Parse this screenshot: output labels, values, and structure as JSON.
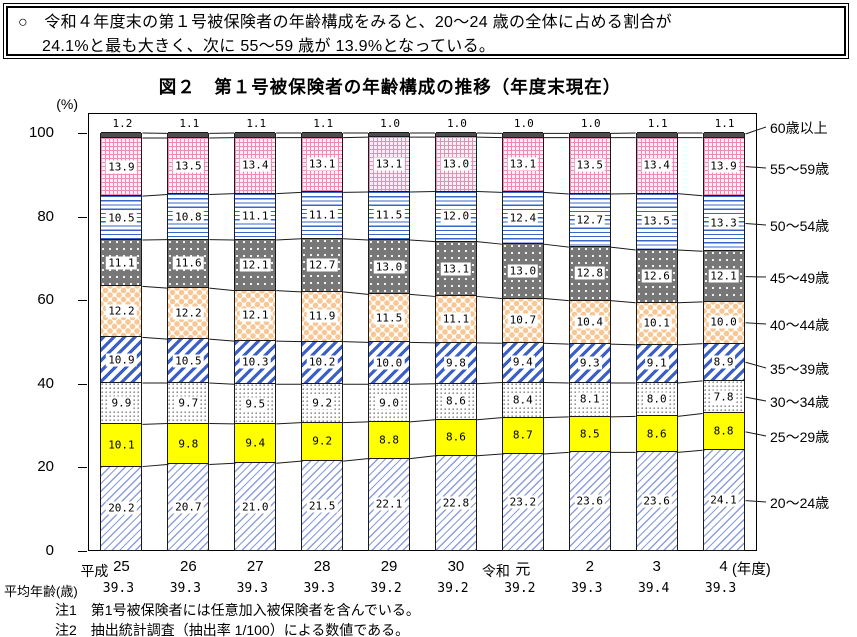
{
  "summary": {
    "bullet": "○",
    "line1": "令和４年度末の第１号被保険者の年齢構成をみると、20～24 歳の全体に占める割合が",
    "line2": "24.1%と最も大きく、次に 55～59 歳が 13.9%となっている。"
  },
  "chart_data": {
    "type": "bar",
    "stacked": true,
    "title": "図２　第１号被保険者の年齢構成の推移（年度末現在）",
    "y_unit": "(%)",
    "x_unit": "(年度)",
    "ylim": [
      0,
      100
    ],
    "yticks": [
      0,
      20,
      40,
      60,
      80,
      100
    ],
    "grid": false,
    "legend_position": "right",
    "categories": [
      "25",
      "26",
      "27",
      "28",
      "29",
      "30",
      "元",
      "2",
      "3",
      "4"
    ],
    "era_prefixes": [
      {
        "index": 0,
        "label": "平成"
      },
      {
        "index": 6,
        "label": "令和"
      }
    ],
    "series": [
      {
        "key": "20-24",
        "name": "20～24歳",
        "pattern": "diagonal-hatch-light-blue",
        "label_box": true,
        "values": [
          20.2,
          20.7,
          21.0,
          21.5,
          22.1,
          22.8,
          23.2,
          23.6,
          23.6,
          24.1
        ]
      },
      {
        "key": "25-29",
        "name": "25～29歳",
        "pattern": "solid-yellow",
        "label_box": false,
        "values": [
          10.1,
          9.8,
          9.4,
          9.2,
          8.8,
          8.6,
          8.7,
          8.5,
          8.6,
          8.8
        ]
      },
      {
        "key": "30-34",
        "name": "30～34歳",
        "pattern": "small-dots-white",
        "label_box": true,
        "values": [
          9.9,
          9.7,
          9.5,
          9.2,
          9.0,
          8.6,
          8.4,
          8.1,
          8.0,
          7.8
        ]
      },
      {
        "key": "35-39",
        "name": "35～39歳",
        "pattern": "diagonal-stripe-blue",
        "label_box": true,
        "values": [
          10.9,
          10.5,
          10.3,
          10.2,
          10.0,
          9.8,
          9.4,
          9.3,
          9.1,
          8.9
        ]
      },
      {
        "key": "40-44",
        "name": "40～44歳",
        "pattern": "diamond-peach",
        "label_box": true,
        "values": [
          12.2,
          12.2,
          12.1,
          11.9,
          11.5,
          11.1,
          10.7,
          10.4,
          10.1,
          10.0
        ]
      },
      {
        "key": "45-49",
        "name": "45～49歳",
        "pattern": "white-dots-dark-gray",
        "label_box": true,
        "values": [
          11.1,
          11.6,
          12.1,
          12.7,
          13.0,
          13.1,
          13.0,
          12.8,
          12.6,
          12.1
        ]
      },
      {
        "key": "50-54",
        "name": "50～54歳",
        "pattern": "horizontal-lines-blue",
        "label_box": true,
        "values": [
          10.5,
          10.8,
          11.1,
          11.1,
          11.5,
          12.0,
          12.4,
          12.7,
          13.5,
          13.3
        ]
      },
      {
        "key": "55-59",
        "name": "55～59歳",
        "pattern": "grid-pink",
        "label_box": true,
        "values": [
          13.9,
          13.5,
          13.4,
          13.1,
          13.1,
          13.0,
          13.1,
          13.5,
          13.4,
          13.9
        ]
      },
      {
        "key": "60plus",
        "name": "60歳以上",
        "pattern": "solid-dark-gray",
        "label_box": false,
        "values": [
          1.2,
          1.1,
          1.1,
          1.1,
          1.0,
          1.0,
          1.0,
          1.0,
          1.1,
          1.1
        ]
      }
    ],
    "avg_age": {
      "label": "平均年齢(歳)",
      "values": [
        39.3,
        39.3,
        39.3,
        39.3,
        39.2,
        39.2,
        39.2,
        39.3,
        39.4,
        39.3
      ]
    }
  },
  "notes": [
    "注1　第1号被保険者には任意加入被保険者を含んでいる。",
    "注2　抽出統計調査（抽出率 1/100）による数値である。"
  ],
  "colors": {
    "bar_border": "#1a1a1a",
    "yellow": "#ffff00",
    "stripe_blue": "#3a5fc8",
    "line_blue": "#3a66c8",
    "hatch_light_blue": "#8c9edb",
    "diamond_peach": "#f7c795",
    "dots_gray_bg": "#777777",
    "grid_pink": "#ee8ab8",
    "grid_pink_bg": "#fdf0f5",
    "solid_dark_gray": "#4d4d4d",
    "text": "#000000"
  }
}
